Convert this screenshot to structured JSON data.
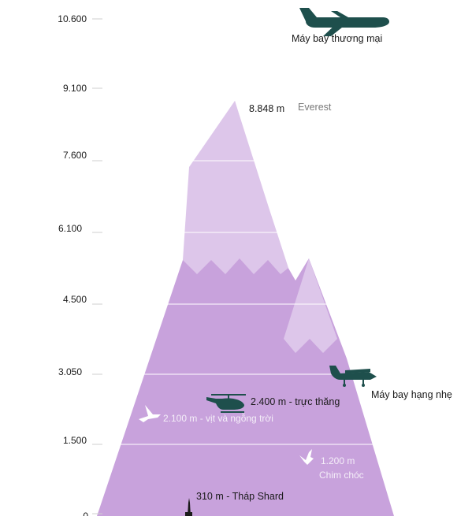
{
  "colors": {
    "mountain_dark": "#c8a2dc",
    "mountain_light": "#ddc6ea",
    "silhouette": "#1e4f4c",
    "gridline": "#ffffff",
    "tick": "#cfcfcf"
  },
  "axis": {
    "ticks": [
      "10.600",
      "9.100",
      "7.600",
      "6.100",
      "4.500",
      "3.050",
      "1.500",
      "0"
    ]
  },
  "labels": {
    "commercial_plane": "Máy bay thương mại",
    "everest_height": "8.848 m",
    "everest_name": "Everest",
    "light_plane": "Máy bay hạng nhẹ",
    "helicopter": "2.400 m - trực thăng",
    "ducks": "2.100 m - vịt và ngỗng trời",
    "birds_height": "1.200 m",
    "birds_name": "Chim chóc",
    "shard": "310 m - Tháp Shard"
  },
  "icons": {
    "commercial_plane": "airliner-icon",
    "light_plane": "light-plane-icon",
    "helicopter": "helicopter-icon",
    "duck": "flying-goose-icon",
    "bird": "bird-icon",
    "shard": "shard-tower-icon"
  }
}
